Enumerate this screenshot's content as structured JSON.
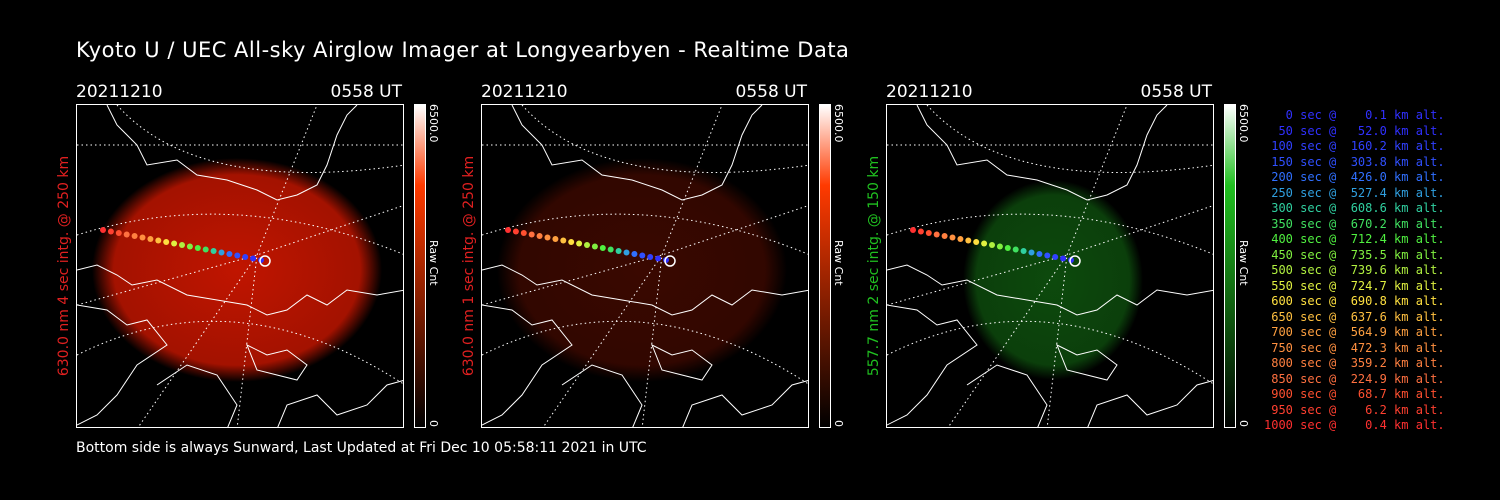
{
  "title": "Kyoto U / UEC All-sky Airglow Imager at Longyearbyen - Realtime Data",
  "panels": [
    {
      "date": "20211210",
      "time": "0558 UT",
      "vertical_label": "630.0 nm 4 sec intg. @ 250 km",
      "label_color": "#e02020",
      "colorbar_max": "6500.0",
      "colorbar_min": "0",
      "colorbar_unit": "Raw Cnt",
      "colorbar_color": "#ff3a00",
      "glow_color": "#c01500"
    },
    {
      "date": "20211210",
      "time": "0558 UT",
      "vertical_label": "630.0 nm 1 sec intg. @ 250 km",
      "label_color": "#e02020",
      "colorbar_max": "6500.0",
      "colorbar_min": "0",
      "colorbar_unit": "Raw Cnt",
      "colorbar_color": "#ff3a00",
      "glow_color": "#3a0800"
    },
    {
      "date": "20211210",
      "time": "0558 UT",
      "vertical_label": "557.7 nm 2 sec intg. @ 150 km",
      "label_color": "#20c020",
      "colorbar_max": "6500.0",
      "colorbar_min": "0",
      "colorbar_unit": "Raw Cnt",
      "colorbar_color": "#20c020",
      "glow_color": "#0d4a0d"
    }
  ],
  "legend": [
    {
      "text": "   0 sec @    0.1 km alt.",
      "color": "#3030ff"
    },
    {
      "text": "  50 sec @   52.0 km alt.",
      "color": "#3030ff"
    },
    {
      "text": " 100 sec @  160.2 km alt.",
      "color": "#3040ff"
    },
    {
      "text": " 150 sec @  303.8 km alt.",
      "color": "#3050ff"
    },
    {
      "text": " 200 sec @  426.0 km alt.",
      "color": "#3070ff"
    },
    {
      "text": " 250 sec @  527.4 km alt.",
      "color": "#30a0e0"
    },
    {
      "text": " 300 sec @  608.6 km alt.",
      "color": "#30d0a0"
    },
    {
      "text": " 350 sec @  670.2 km alt.",
      "color": "#40e060"
    },
    {
      "text": " 400 sec @  712.4 km alt.",
      "color": "#50f040"
    },
    {
      "text": " 450 sec @  735.5 km alt.",
      "color": "#80f040"
    },
    {
      "text": " 500 sec @  739.6 km alt.",
      "color": "#b0f040"
    },
    {
      "text": " 550 sec @  724.7 km alt.",
      "color": "#e0f040"
    },
    {
      "text": " 600 sec @  690.8 km alt.",
      "color": "#ffe040"
    },
    {
      "text": " 650 sec @  637.6 km alt.",
      "color": "#ffc040"
    },
    {
      "text": " 700 sec @  564.9 km alt.",
      "color": "#ffa040"
    },
    {
      "text": " 750 sec @  472.3 km alt.",
      "color": "#ff9040"
    },
    {
      "text": " 800 sec @  359.2 km alt.",
      "color": "#ff8040"
    },
    {
      "text": " 850 sec @  224.9 km alt.",
      "color": "#ff7040"
    },
    {
      "text": " 900 sec @   68.7 km alt.",
      "color": "#ff5030"
    },
    {
      "text": " 950 sec @    6.2 km alt.",
      "color": "#ff4030"
    },
    {
      "text": "1000 sec @    0.4 km alt.",
      "color": "#ff3030"
    }
  ],
  "footer": "Bottom side is always Sunward, Last Updated at Fri Dec 10 05:58:11 2021 in UTC"
}
